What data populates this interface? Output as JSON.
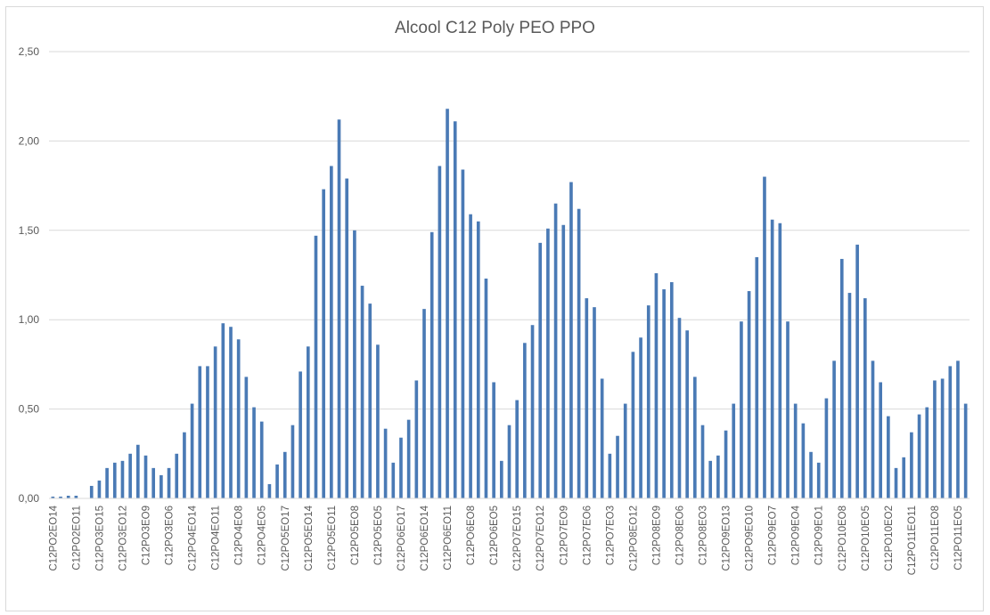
{
  "chart_data": {
    "type": "bar",
    "title": "Alcool C12 Poly PEO PPO",
    "xlabel": "",
    "ylabel": "",
    "ylim": [
      0,
      2.5
    ],
    "y_ticks": [
      "0,00",
      "0,50",
      "1,00",
      "1,50",
      "2,00",
      "2,50"
    ],
    "grid": "horizontal",
    "legend": "none",
    "bar_color": "#4a7ab5",
    "gridline_color": "#d9d9d9",
    "x_tick_labels": [
      "C12PO2EO14",
      "C12PO2EO11",
      "C12PO3EO15",
      "C12PO3EO12",
      "C12PO3EO9",
      "C12PO3EO6",
      "C12PO4EO14",
      "C12PO4EO11",
      "C12PO4EO8",
      "C12PO4EO5",
      "C12PO5EO17",
      "C12PO5EO14",
      "C12PO5EO11",
      "C12PO5EO8",
      "C12PO5EO5",
      "C12PO6EO17",
      "C12PO6EO14",
      "C12PO6EO11",
      "C12PO6EO8",
      "C12PO6EO5",
      "C12PO7EO15",
      "C12PO7EO12",
      "C12PO7EO9",
      "C12PO7EO6",
      "C12PO7EO3",
      "C12PO8EO12",
      "C12PO8EO9",
      "C12PO8EO6",
      "C12PO8EO3",
      "C12PO9EO13",
      "C12PO9EO10",
      "C12PO9EO7",
      "C12PO9EO4",
      "C12PO9EO1",
      "C12PO10EO8",
      "C12PO10EO5",
      "C12PO10EO2",
      "C12PO11EO11",
      "C12PO11EO8",
      "C12PO11EO5"
    ],
    "values": [
      0.01,
      0.01,
      0.015,
      0.015,
      0.0,
      0.07,
      0.1,
      0.17,
      0.2,
      0.21,
      0.25,
      0.3,
      0.24,
      0.17,
      0.13,
      0.17,
      0.25,
      0.37,
      0.53,
      0.74,
      0.74,
      0.85,
      0.98,
      0.96,
      0.89,
      0.68,
      0.51,
      0.43,
      0.08,
      0.19,
      0.26,
      0.41,
      0.71,
      0.85,
      1.47,
      1.73,
      1.86,
      2.12,
      1.79,
      1.5,
      1.19,
      1.09,
      0.86,
      0.39,
      0.2,
      0.34,
      0.44,
      0.66,
      1.06,
      1.49,
      1.86,
      2.18,
      2.11,
      1.84,
      1.59,
      1.55,
      1.23,
      0.65,
      0.21,
      0.41,
      0.55,
      0.87,
      0.97,
      1.43,
      1.51,
      1.65,
      1.53,
      1.77,
      1.62,
      1.12,
      1.07,
      0.67,
      0.25,
      0.35,
      0.53,
      0.82,
      0.9,
      1.08,
      1.26,
      1.17,
      1.21,
      1.01,
      0.94,
      0.68,
      0.41,
      0.21,
      0.24,
      0.38,
      0.53,
      0.99,
      1.16,
      1.35,
      1.8,
      1.56,
      1.54,
      0.99,
      0.53,
      0.42,
      0.26,
      0.2,
      0.56,
      0.77,
      1.34,
      1.15,
      1.42,
      1.12,
      0.77,
      0.65,
      0.46,
      0.17,
      0.23,
      0.37,
      0.47,
      0.51,
      0.66,
      0.67,
      0.74,
      0.77,
      0.53
    ]
  }
}
